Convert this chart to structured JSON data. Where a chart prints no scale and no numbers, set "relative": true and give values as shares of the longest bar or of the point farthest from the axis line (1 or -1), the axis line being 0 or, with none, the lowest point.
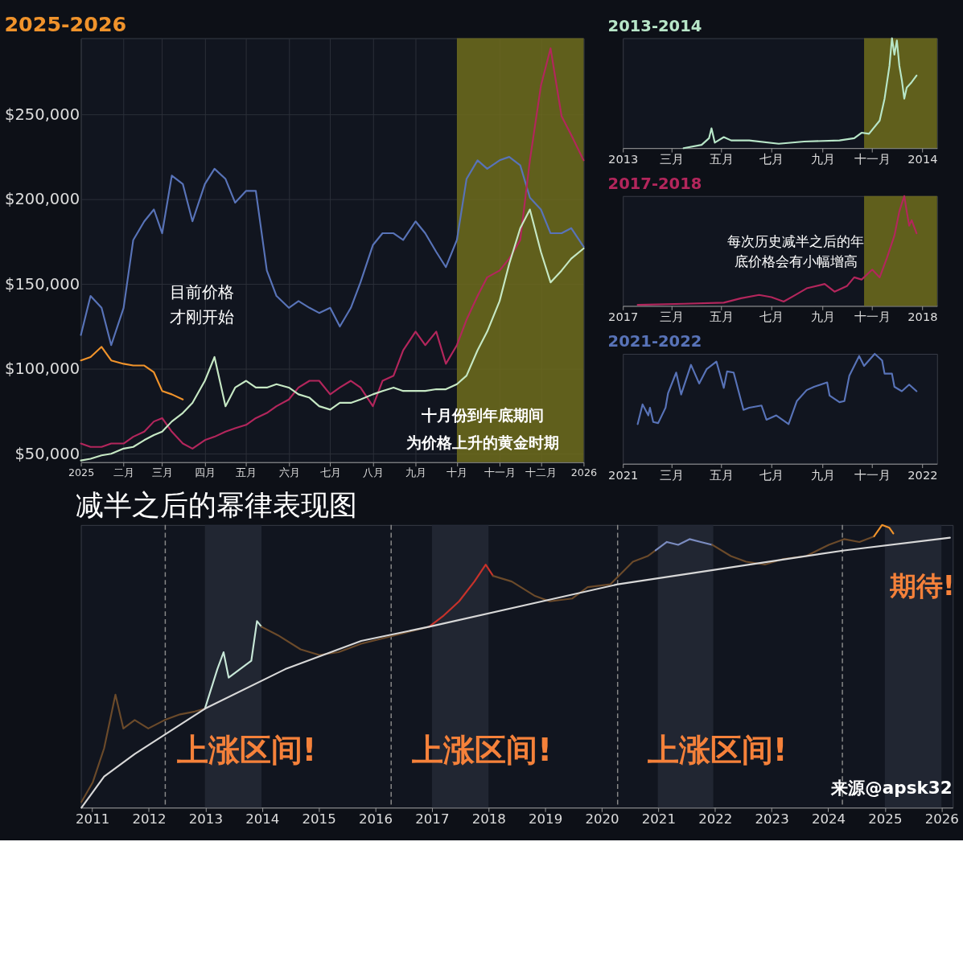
{
  "chart_data": [
    {
      "type": "line",
      "title": "2025-2026",
      "x": [
        "2025-01-01",
        "2025-01-08",
        "2025-01-16",
        "2025-01-23",
        "2025-02-01",
        "2025-02-08",
        "2025-02-16",
        "2025-02-23",
        "2025-03-01",
        "2025-03-08",
        "2025-03-16",
        "2025-03-23",
        "2025-04-01",
        "2025-04-08",
        "2025-04-16",
        "2025-04-23",
        "2025-05-01",
        "2025-05-08",
        "2025-05-16",
        "2025-05-23",
        "2025-06-01",
        "2025-06-08",
        "2025-06-16",
        "2025-06-23",
        "2025-07-01",
        "2025-07-08",
        "2025-07-16",
        "2025-07-23",
        "2025-08-01",
        "2025-08-08",
        "2025-08-16",
        "2025-08-23",
        "2025-09-01",
        "2025-09-08",
        "2025-09-16",
        "2025-09-23",
        "2025-10-01",
        "2025-10-08",
        "2025-10-16",
        "2025-10-23",
        "2025-11-01",
        "2025-11-08",
        "2025-11-16",
        "2025-11-23",
        "2025-12-01",
        "2025-12-08",
        "2025-12-16",
        "2025-12-23",
        "2026-01-01"
      ],
      "series": [
        {
          "color": "#5873b8",
          "values": [
            120000,
            143000,
            136000,
            114000,
            136000,
            176000,
            187000,
            194000,
            180000,
            214000,
            209000,
            187000,
            209000,
            218000,
            212000,
            198000,
            205000,
            205000,
            158000,
            143000,
            136000,
            140000,
            136000,
            133000,
            136000,
            125000,
            136000,
            151000,
            173000,
            180000,
            180000,
            176000,
            187000,
            180000,
            169000,
            160000,
            176000,
            212000,
            223000,
            218000,
            223000,
            225000,
            220000,
            201000,
            194000,
            180000,
            180000,
            183000,
            172000
          ]
        },
        {
          "color": "#b3265c",
          "values": [
            56000,
            54000,
            54000,
            56000,
            56000,
            60000,
            63000,
            69000,
            71000,
            63000,
            56000,
            53000,
            58000,
            60000,
            63000,
            65000,
            67000,
            71000,
            74000,
            78000,
            82000,
            89000,
            93000,
            93000,
            85000,
            89000,
            93000,
            89000,
            78000,
            93000,
            96000,
            111000,
            122000,
            114000,
            122000,
            103000,
            114000,
            129000,
            143000,
            154000,
            158000,
            165000,
            176000,
            223000,
            267000,
            289000,
            249000,
            238000,
            223000
          ]
        },
        {
          "color": "#c6e8c4",
          "values": [
            46000,
            47000,
            49000,
            50000,
            53000,
            54000,
            58000,
            61000,
            63000,
            69000,
            74000,
            80000,
            93000,
            107000,
            78000,
            89000,
            93000,
            89000,
            89000,
            91000,
            89000,
            85000,
            83000,
            78000,
            76000,
            80000,
            80000,
            82000,
            85000,
            87000,
            89000,
            87000,
            87000,
            87000,
            88000,
            88000,
            91000,
            96000,
            111000,
            122000,
            140000,
            162000,
            183000,
            194000,
            169000,
            151000,
            158000,
            165000,
            171000
          ]
        },
        {
          "color": "#f0932b",
          "x": [
            "2025-01-01",
            "2025-01-08",
            "2025-01-16",
            "2025-01-23",
            "2025-02-01",
            "2025-02-08",
            "2025-02-16",
            "2025-02-23",
            "2025-03-01",
            "2025-03-08",
            "2025-03-16"
          ],
          "values": [
            105000,
            107000,
            113000,
            105000,
            103000,
            102000,
            102000,
            98000,
            87000,
            85000,
            82000
          ]
        }
      ],
      "xlim": [
        "2025-01-01",
        "2026-01-01"
      ],
      "xticks": [
        {
          "value": "2025-01-01",
          "label": "2025"
        },
        {
          "value": "2025-02-01",
          "label": "二月"
        },
        {
          "value": "2025-03-01",
          "label": "三月"
        },
        {
          "value": "2025-04-01",
          "label": "四月"
        },
        {
          "value": "2025-05-01",
          "label": "五月"
        },
        {
          "value": "2025-06-01",
          "label": "六月"
        },
        {
          "value": "2025-07-01",
          "label": "七月"
        },
        {
          "value": "2025-08-01",
          "label": "八月"
        },
        {
          "value": "2025-09-01",
          "label": "九月"
        },
        {
          "value": "2025-10-01",
          "label": "十月"
        },
        {
          "value": "2025-11-01",
          "label": "十一月"
        },
        {
          "value": "2025-12-01",
          "label": "十二月"
        },
        {
          "value": "2026-01-01",
          "label": "2026"
        }
      ],
      "ylim": [
        45000,
        295000
      ],
      "yticks": [
        {
          "value": 50000,
          "label": "$50,000"
        },
        {
          "value": 100000,
          "label": "$100,000"
        },
        {
          "value": 150000,
          "label": "$150,000"
        },
        {
          "value": 200000,
          "label": "$200,000"
        },
        {
          "value": 250000,
          "label": "$250,000"
        }
      ],
      "grid": true,
      "bands": [
        {
          "axis": "x",
          "from": "2025-10-01",
          "to": "2026-01-01",
          "color": "#6e6c1c"
        }
      ],
      "annotations": [
        "目前价格",
        "才刚开始",
        "十月份到年底期间",
        "为价格上升的黄金时期"
      ]
    },
    {
      "type": "line",
      "title": "2013-2014",
      "relative": true,
      "tick_labels": "x",
      "series": [
        {
          "color": "#b8e6c8",
          "x": [
            "2013-03-16",
            "2013-04-07",
            "2013-04-16",
            "2013-04-19",
            "2013-04-23",
            "2013-05-04",
            "2013-05-13",
            "2013-06-04",
            "2013-07-10",
            "2013-08-10",
            "2013-09-22",
            "2013-10-10",
            "2013-10-19",
            "2013-10-28",
            "2013-11-10",
            "2013-11-16",
            "2013-11-22",
            "2013-11-25",
            "2013-11-28",
            "2013-12-01",
            "2013-12-04",
            "2013-12-07",
            "2013-12-10",
            "2013-12-13",
            "2013-12-19",
            "2013-12-25"
          ],
          "values": [
            0,
            0.03,
            0.09,
            0.18,
            0.05,
            0.1,
            0.07,
            0.07,
            0.04,
            0.06,
            0.07,
            0.09,
            0.14,
            0.13,
            0.25,
            0.45,
            0.75,
            1,
            0.85,
            0.98,
            0.75,
            0.62,
            0.45,
            0.55,
            0.6,
            0.66
          ]
        }
      ],
      "xlim": [
        "2013-01-01",
        "2014-01-19"
      ],
      "xticks": [
        {
          "value": "2013-01-01",
          "label": "2013"
        },
        {
          "value": "2013-03-01",
          "label": "三月"
        },
        {
          "value": "2013-05-01",
          "label": "五月"
        },
        {
          "value": "2013-07-01",
          "label": "七月"
        },
        {
          "value": "2013-09-01",
          "label": "九月"
        },
        {
          "value": "2013-11-01",
          "label": "十一月"
        },
        {
          "value": "2014-01-01",
          "label": "2014"
        }
      ],
      "bands": [
        {
          "axis": "x",
          "from": "2013-10-22",
          "to": "2014-01-19",
          "color": "#6e6c1c"
        }
      ]
    },
    {
      "type": "line",
      "title": "2017-2018",
      "relative": true,
      "tick_labels": "x",
      "series": [
        {
          "color": "#b3265c",
          "x": [
            "2017-01-19",
            "2017-03-16",
            "2017-05-04",
            "2017-05-25",
            "2017-06-16",
            "2017-07-01",
            "2017-07-16",
            "2017-07-28",
            "2017-08-13",
            "2017-09-04",
            "2017-09-16",
            "2017-10-01",
            "2017-10-10",
            "2017-10-19",
            "2017-11-01",
            "2017-11-10",
            "2017-11-19",
            "2017-11-28",
            "2017-12-04",
            "2017-12-10",
            "2017-12-13",
            "2017-12-16",
            "2017-12-19",
            "2017-12-25"
          ],
          "values": [
            0.01,
            0.02,
            0.03,
            0.07,
            0.1,
            0.08,
            0.04,
            0.09,
            0.16,
            0.2,
            0.13,
            0.18,
            0.26,
            0.24,
            0.33,
            0.26,
            0.44,
            0.64,
            0.86,
            1,
            0.86,
            0.73,
            0.78,
            0.66
          ]
        }
      ],
      "xlim": [
        "2017-01-01",
        "2018-01-19"
      ],
      "xticks": [
        {
          "value": "2017-01-01",
          "label": "2017"
        },
        {
          "value": "2017-03-01",
          "label": "三月"
        },
        {
          "value": "2017-05-01",
          "label": "五月"
        },
        {
          "value": "2017-07-01",
          "label": "七月"
        },
        {
          "value": "2017-09-01",
          "label": "九月"
        },
        {
          "value": "2017-11-01",
          "label": "十一月"
        },
        {
          "value": "2018-01-01",
          "label": "2018"
        }
      ],
      "bands": [
        {
          "axis": "x",
          "from": "2017-10-22",
          "to": "2018-01-19",
          "color": "#6e6c1c"
        }
      ],
      "annotations": [
        "每次历史减半之后的年",
        "底价格会有小幅增高"
      ]
    },
    {
      "type": "line",
      "title": "2021-2022",
      "relative": true,
      "tick_labels": "x",
      "series": [
        {
          "color": "#5873b8",
          "x": [
            "2021-01-19",
            "2021-01-25",
            "2021-02-01",
            "2021-02-03",
            "2021-02-07",
            "2021-02-13",
            "2021-02-22",
            "2021-02-25",
            "2021-03-07",
            "2021-03-13",
            "2021-03-25",
            "2021-04-04",
            "2021-04-13",
            "2021-04-25",
            "2021-05-04",
            "2021-05-08",
            "2021-05-16",
            "2021-05-28",
            "2021-06-04",
            "2021-06-19",
            "2021-06-25",
            "2021-07-07",
            "2021-07-22",
            "2021-08-01",
            "2021-08-13",
            "2021-08-22",
            "2021-09-07",
            "2021-09-10",
            "2021-09-22",
            "2021-09-28",
            "2021-10-04",
            "2021-10-16",
            "2021-10-22",
            "2021-11-04",
            "2021-11-13",
            "2021-11-16",
            "2021-11-25",
            "2021-11-28",
            "2021-12-07",
            "2021-12-16",
            "2021-12-25"
          ],
          "values": [
            0.36,
            0.54,
            0.44,
            0.51,
            0.38,
            0.37,
            0.51,
            0.64,
            0.83,
            0.63,
            0.9,
            0.73,
            0.86,
            0.93,
            0.69,
            0.84,
            0.83,
            0.49,
            0.51,
            0.53,
            0.4,
            0.44,
            0.36,
            0.57,
            0.67,
            0.7,
            0.74,
            0.62,
            0.56,
            0.57,
            0.8,
            0.98,
            0.89,
            1,
            0.94,
            0.82,
            0.82,
            0.7,
            0.66,
            0.72,
            0.66
          ]
        }
      ],
      "xlim": [
        "2021-01-01",
        "2022-01-19"
      ],
      "xticks": [
        {
          "value": "2021-01-01",
          "label": "2021"
        },
        {
          "value": "2021-03-01",
          "label": "三月"
        },
        {
          "value": "2021-05-01",
          "label": "五月"
        },
        {
          "value": "2021-07-01",
          "label": "七月"
        },
        {
          "value": "2021-09-01",
          "label": "九月"
        },
        {
          "value": "2021-11-01",
          "label": "十一月"
        },
        {
          "value": "2022-01-01",
          "label": "2022"
        }
      ]
    },
    {
      "type": "line",
      "title": "减半之后的幂律表现图",
      "relative": true,
      "tick_labels": "x",
      "series": [
        {
          "color": "#6b4a2a",
          "x": [
            2010.81,
            2011.01,
            2011.21,
            2011.41,
            2011.55,
            2011.75,
            2011.99,
            2012.28,
            2012.55,
            2012.81,
            2012.99
          ],
          "values": [
            0.02,
            0.09,
            0.21,
            0.4,
            0.28,
            0.31,
            0.28,
            0.31,
            0.33,
            0.34,
            0.35
          ]
        },
        {
          "color": "#c8e8d8",
          "x": [
            2012.99,
            2013.21,
            2013.32,
            2013.41,
            2013.61,
            2013.81,
            2013.91,
            2013.99
          ],
          "values": [
            0.35,
            0.49,
            0.55,
            0.46,
            0.49,
            0.52,
            0.66,
            0.64
          ]
        },
        {
          "color": "#6b4a2a",
          "x": [
            2013.99,
            2014.28,
            2014.68,
            2015.01,
            2015.35,
            2015.75,
            2016.15,
            2016.55,
            2016.95
          ],
          "values": [
            0.64,
            0.61,
            0.56,
            0.54,
            0.55,
            0.58,
            0.6,
            0.62,
            0.64
          ]
        },
        {
          "color": "#c8322a",
          "x": [
            2016.95,
            2017.21,
            2017.48,
            2017.75,
            2017.95,
            2018.08
          ],
          "values": [
            0.64,
            0.68,
            0.73,
            0.8,
            0.86,
            0.82
          ]
        },
        {
          "color": "#6b4a2a",
          "x": [
            2018.08,
            2018.41,
            2018.81,
            2019.08,
            2019.48,
            2019.75,
            2020.15,
            2020.55,
            2020.81,
            2020.95
          ],
          "values": [
            0.82,
            0.8,
            0.75,
            0.73,
            0.74,
            0.78,
            0.79,
            0.87,
            0.89,
            0.91
          ]
        },
        {
          "color": "#7b8cc0",
          "x": [
            2020.95,
            2021.15,
            2021.35,
            2021.55,
            2021.75,
            2021.95
          ],
          "values": [
            0.91,
            0.94,
            0.93,
            0.95,
            0.94,
            0.93
          ]
        },
        {
          "color": "#6b4a2a",
          "x": [
            2021.95,
            2022.28,
            2022.55,
            2022.88,
            2023.21,
            2023.61,
            2024.01,
            2024.28,
            2024.55,
            2024.81
          ],
          "values": [
            0.93,
            0.89,
            0.87,
            0.86,
            0.88,
            0.89,
            0.93,
            0.95,
            0.94,
            0.96
          ]
        },
        {
          "color": "#f0932b",
          "x": [
            2024.81,
            2024.95,
            2025.08,
            2025.15
          ],
          "values": [
            0.96,
            1,
            0.99,
            0.97
          ]
        },
        {
          "color": "#d8d8d8",
          "x": [
            2010.81,
            2011.21,
            2011.75,
            2012.99,
            2014.41,
            2015.75,
            2016.95,
            2020.28,
            2024.28,
            2026.15
          ],
          "values": [
            0,
            0.11,
            0.19,
            0.35,
            0.49,
            0.59,
            0.64,
            0.79,
            0.91,
            0.955
          ]
        }
      ],
      "xlim": [
        2010.8,
        2026.2
      ],
      "xticks": [
        2011,
        2012,
        2013,
        2014,
        2015,
        2016,
        2017,
        2018,
        2019,
        2020,
        2021,
        2022,
        2023,
        2024,
        2025,
        2026
      ],
      "bands": [
        {
          "axis": "x",
          "from": 2012.99,
          "to": 2013.99,
          "color": "#252936"
        },
        {
          "axis": "x",
          "from": 2017.0,
          "to": 2018.0,
          "color": "#252936"
        },
        {
          "axis": "x",
          "from": 2020.99,
          "to": 2021.97,
          "color": "#252936"
        },
        {
          "axis": "x",
          "from": 2025.0,
          "to": 2026.0,
          "color": "#252936"
        }
      ],
      "ref_lines": [
        {
          "axis": "x",
          "value": 2012.29,
          "color": "#8a8a8a",
          "line_style": "dashed"
        },
        {
          "axis": "x",
          "value": 2016.28,
          "color": "#8a8a8a",
          "line_style": "dashed"
        },
        {
          "axis": "x",
          "value": 2020.28,
          "color": "#8a8a8a",
          "line_style": "dashed"
        },
        {
          "axis": "x",
          "value": 2024.25,
          "color": "#8a8a8a",
          "line_style": "dashed"
        }
      ],
      "annotations": [
        "上涨区间!",
        "上涨区间!",
        "上涨区间!",
        "期待!",
        "来源@apsk32"
      ]
    }
  ]
}
